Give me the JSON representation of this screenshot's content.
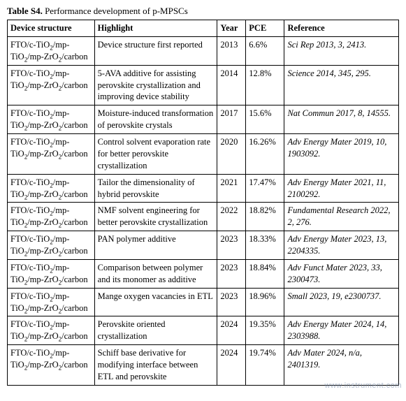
{
  "caption_bold": "Table S4.",
  "caption_rest": " Performance development of p-MPSCs",
  "columns": [
    "Device structure",
    "Highlight",
    "Year",
    "PCE",
    "Reference"
  ],
  "rows": [
    {
      "ds": "FTO/c-TiO₂/mp-TiO₂/mp-ZrO₂/carbon",
      "hl": "Device structure first reported",
      "yr": "2013",
      "pce": "6.6%",
      "ref": "Sci Rep 2013, 3, 2413."
    },
    {
      "ds": "FTO/c-TiO₂/mp-TiO₂/mp-ZrO₂/carbon",
      "hl": "5-AVA additive for assisting perovskite crystallization and improving device stability",
      "yr": "2014",
      "pce": "12.8%",
      "ref": "Science 2014, 345, 295."
    },
    {
      "ds": "FTO/c-TiO₂/mp-TiO₂/mp-ZrO₂/carbon",
      "hl": "Moisture-induced transformation of perovskite crystals",
      "yr": "2017",
      "pce": "15.6%",
      "ref": "Nat Commun 2017, 8, 14555."
    },
    {
      "ds": "FTO/c-TiO₂/mp-TiO₂/mp-ZrO₂/carbon",
      "hl": "Control solvent evaporation rate for better perovskite crystallization",
      "yr": "2020",
      "pce": "16.26%",
      "ref": "Adv Energy Mater 2019, 10, 1903092."
    },
    {
      "ds": "FTO/c-TiO₂/mp-TiO₂/mp-ZrO₂/carbon",
      "hl": "Tailor the dimensionality of hybrid perovskite",
      "yr": "2021",
      "pce": "17.47%",
      "ref": "Adv Energy Mater 2021, 11, 2100292."
    },
    {
      "ds": "FTO/c-TiO₂/mp-TiO₂/mp-ZrO₂/carbon",
      "hl": "NMF solvent engineering for better perovskite crystallization",
      "yr": "2022",
      "pce": "18.82%",
      "ref": "Fundamental Research 2022, 2, 276."
    },
    {
      "ds": "FTO/c-TiO₂/mp-TiO₂/mp-ZrO₂/carbon",
      "hl": "PAN polymer additive",
      "yr": "2023",
      "pce": "18.33%",
      "ref": "Adv Energy Mater 2023, 13, 2204335."
    },
    {
      "ds": "FTO/c-TiO₂/mp-TiO₂/mp-ZrO₂/carbon",
      "hl": "Comparison between polymer and its monomer as additive",
      "yr": "2023",
      "pce": "18.84%",
      "ref": "Adv Funct Mater 2023, 33, 2300473."
    },
    {
      "ds": "FTO/c-TiO₂/mp-TiO₂/mp-ZrO₂/carbon",
      "hl": "Mange oxygen vacancies in ETL",
      "yr": "2023",
      "pce": "18.96%",
      "ref": "Small 2023, 19, e2300737."
    },
    {
      "ds": "FTO/c-TiO₂/mp-TiO₂/mp-ZrO₂/carbon",
      "hl": "Perovskite oriented crystallization",
      "yr": "2024",
      "pce": "19.35%",
      "ref": "Adv Energy Mater 2024, 14, 2303988."
    },
    {
      "ds": "FTO/c-TiO₂/mp-TiO₂/mp-ZrO₂/carbon",
      "hl": "Schiff base derivative for modifying interface between ETL and perovskite",
      "yr": "2024",
      "pce": "19.74%",
      "ref": "Adv Mater 2024, n/a, 2401319."
    }
  ],
  "watermark": "www.instrument.com"
}
